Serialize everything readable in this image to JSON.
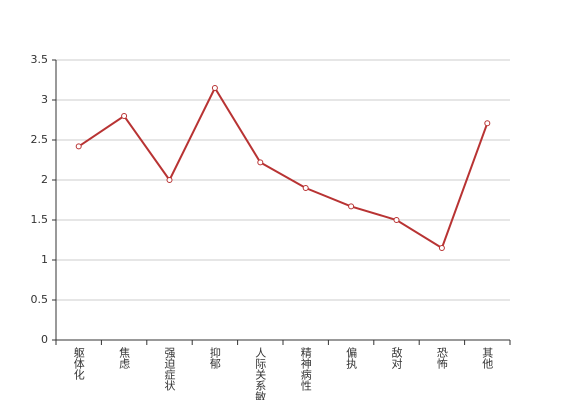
{
  "chart_data": {
    "type": "line",
    "categories": [
      "躯体化",
      "焦虑",
      "强迫症状",
      "抑郁",
      "人际关系敏感",
      "精神病性",
      "偏执",
      "敌对",
      "恐怖",
      "其他"
    ],
    "series": [
      {
        "color": "#b83333",
        "values": [
          2.42,
          2.8,
          2.0,
          3.15,
          2.22,
          1.9,
          1.67,
          1.5,
          1.15,
          2.71
        ]
      }
    ],
    "ylim": [
      0,
      3.5
    ],
    "yticks": [
      0,
      0.5,
      1,
      1.5,
      2,
      2.5,
      3,
      3.5
    ],
    "grid": true
  }
}
